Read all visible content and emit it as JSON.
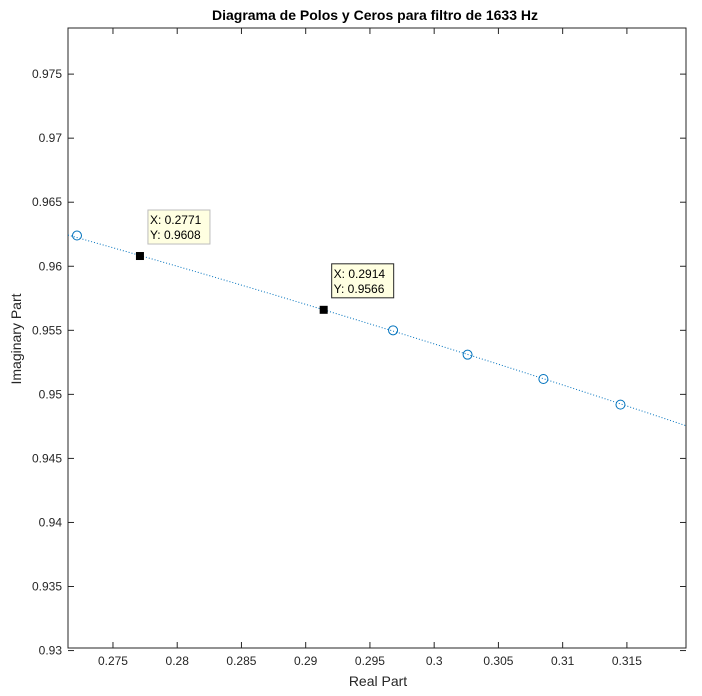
{
  "chart_data": {
    "type": "scatter",
    "title": "Diagrama de Polos y Ceros para filtro de 1633 Hz",
    "xlabel": "Real Part",
    "ylabel": "Imaginary Part",
    "xlim": [
      0.2715,
      0.3196
    ],
    "ylim": [
      0.9302,
      0.9786
    ],
    "xticks": [
      "0.275",
      "0.28",
      "0.285",
      "0.29",
      "0.295",
      "0.3",
      "0.305",
      "0.31",
      "0.315"
    ],
    "yticks": [
      "0.93",
      "0.935",
      "0.94",
      "0.945",
      "0.95",
      "0.955",
      "0.96",
      "0.965",
      "0.97",
      "0.975"
    ],
    "grid": false,
    "series": [
      {
        "marker": "circle",
        "color": "#0072BD",
        "x": [
          0.2722,
          0.2968,
          0.3026,
          0.3085,
          0.3145
        ],
        "y": [
          0.9624,
          0.955,
          0.9531,
          0.9512,
          0.9492
        ]
      }
    ],
    "unit_circle_segment": {
      "style": "dotted",
      "color": "#0072BD",
      "x_range": [
        0.2715,
        0.3196
      ]
    },
    "datatips": [
      {
        "x": 0.2771,
        "y": 0.9608,
        "x_label": "X: 0.2771",
        "y_label": "Y: 0.9608"
      },
      {
        "x": 0.2914,
        "y": 0.9566,
        "x_label": "X: 0.2914",
        "y_label": "Y: 0.9566"
      }
    ]
  }
}
